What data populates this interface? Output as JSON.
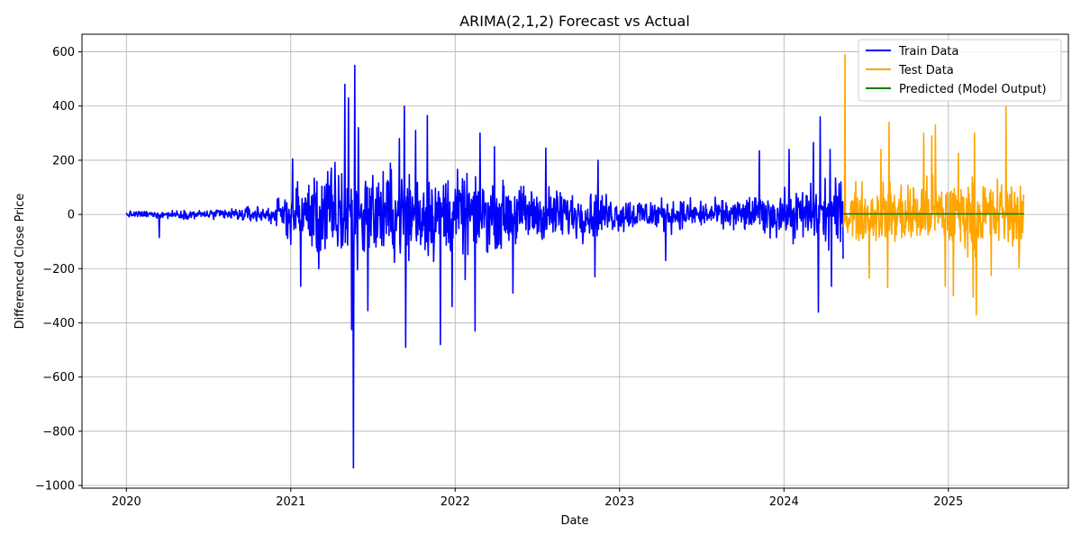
{
  "chart_data": {
    "type": "line",
    "title": "ARIMA(2,1,2) Forecast vs Actual",
    "xlabel": "Date",
    "ylabel": "Differenced Close Price",
    "x_ticks": [
      "2020",
      "2021",
      "2022",
      "2023",
      "2024",
      "2025"
    ],
    "y_ticks": [
      "600",
      "400",
      "200",
      "0",
      "−200",
      "−400",
      "−600",
      "−800",
      "−1000"
    ],
    "xlim": [
      2019.73,
      2025.73
    ],
    "ylim": [
      -1010,
      665
    ],
    "grid": true,
    "legend_position": "top-right",
    "series": [
      {
        "name": "Train Data",
        "color": "#0000ff",
        "x_range": [
          2020.0,
          2024.36
        ],
        "amplitude_profile": [
          {
            "x": 2020.0,
            "amp": 8
          },
          {
            "x": 2020.5,
            "amp": 12
          },
          {
            "x": 2020.9,
            "amp": 25
          },
          {
            "x": 2021.0,
            "amp": 70
          },
          {
            "x": 2021.3,
            "amp": 140
          },
          {
            "x": 2021.5,
            "amp": 120
          },
          {
            "x": 2021.9,
            "amp": 110
          },
          {
            "x": 2022.3,
            "amp": 80
          },
          {
            "x": 2022.8,
            "amp": 60
          },
          {
            "x": 2023.0,
            "amp": 45
          },
          {
            "x": 2023.6,
            "amp": 35
          },
          {
            "x": 2024.0,
            "amp": 60
          },
          {
            "x": 2024.36,
            "amp": 90
          }
        ],
        "spikes": [
          {
            "x": 2020.2,
            "y": -85
          },
          {
            "x": 2021.01,
            "y": 205
          },
          {
            "x": 2021.06,
            "y": -265
          },
          {
            "x": 2021.17,
            "y": -200
          },
          {
            "x": 2021.33,
            "y": 480
          },
          {
            "x": 2021.35,
            "y": 430
          },
          {
            "x": 2021.37,
            "y": -425
          },
          {
            "x": 2021.38,
            "y": -935
          },
          {
            "x": 2021.39,
            "y": 550
          },
          {
            "x": 2021.41,
            "y": 320
          },
          {
            "x": 2021.47,
            "y": -355
          },
          {
            "x": 2021.66,
            "y": 280
          },
          {
            "x": 2021.69,
            "y": 400
          },
          {
            "x": 2021.7,
            "y": -490
          },
          {
            "x": 2021.76,
            "y": 310
          },
          {
            "x": 2021.83,
            "y": 365
          },
          {
            "x": 2021.91,
            "y": -480
          },
          {
            "x": 2021.98,
            "y": -340
          },
          {
            "x": 2022.06,
            "y": -240
          },
          {
            "x": 2022.12,
            "y": -430
          },
          {
            "x": 2022.15,
            "y": 300
          },
          {
            "x": 2022.24,
            "y": 250
          },
          {
            "x": 2022.35,
            "y": -290
          },
          {
            "x": 2022.55,
            "y": 245
          },
          {
            "x": 2022.85,
            "y": -230
          },
          {
            "x": 2022.87,
            "y": 200
          },
          {
            "x": 2023.28,
            "y": -170
          },
          {
            "x": 2023.85,
            "y": 235
          },
          {
            "x": 2024.03,
            "y": 240
          },
          {
            "x": 2024.18,
            "y": 265
          },
          {
            "x": 2024.21,
            "y": -360
          },
          {
            "x": 2024.22,
            "y": 360
          },
          {
            "x": 2024.28,
            "y": 240
          },
          {
            "x": 2024.29,
            "y": -265
          }
        ]
      },
      {
        "name": "Test Data",
        "color": "#ffa500",
        "x_range": [
          2024.36,
          2025.46
        ],
        "amplitude_profile": [
          {
            "x": 2024.36,
            "amp": 70
          },
          {
            "x": 2024.8,
            "amp": 90
          },
          {
            "x": 2025.46,
            "amp": 90
          }
        ],
        "spikes": [
          {
            "x": 2024.37,
            "y": 590
          },
          {
            "x": 2024.52,
            "y": -235
          },
          {
            "x": 2024.59,
            "y": 240
          },
          {
            "x": 2024.63,
            "y": -270
          },
          {
            "x": 2024.64,
            "y": 340
          },
          {
            "x": 2024.85,
            "y": 300
          },
          {
            "x": 2024.9,
            "y": 290
          },
          {
            "x": 2024.92,
            "y": 330
          },
          {
            "x": 2024.98,
            "y": -265
          },
          {
            "x": 2025.03,
            "y": -300
          },
          {
            "x": 2025.06,
            "y": 225
          },
          {
            "x": 2025.15,
            "y": -305
          },
          {
            "x": 2025.16,
            "y": 300
          },
          {
            "x": 2025.17,
            "y": -370
          },
          {
            "x": 2025.26,
            "y": -225
          },
          {
            "x": 2025.35,
            "y": 400
          },
          {
            "x": 2025.43,
            "y": -195
          }
        ]
      },
      {
        "name": "Predicted (Model Output)",
        "color": "#008000",
        "x": [
          2024.36,
          2025.46
        ],
        "y": [
          2,
          2
        ]
      }
    ]
  }
}
